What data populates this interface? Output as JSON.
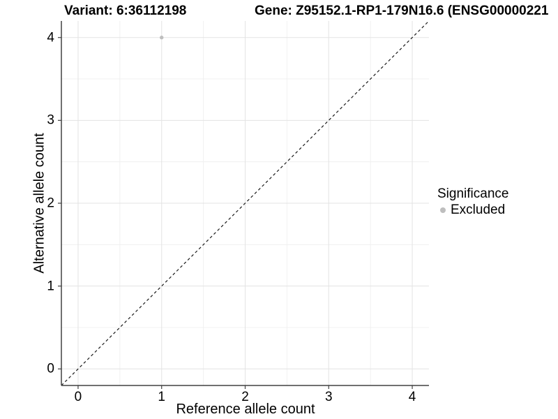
{
  "header": {
    "variant_title": "Variant: 6:36112198",
    "gene_title": "Gene: Z95152.1-RP1-179N16.6 (ENSG00000221"
  },
  "chart_data": {
    "type": "scatter",
    "xlabel": "Reference allele count",
    "ylabel": "Alternative allele count",
    "xlim": [
      -0.2,
      4.2
    ],
    "ylim": [
      -0.2,
      4.2
    ],
    "x_ticks": [
      0,
      1,
      2,
      3,
      4
    ],
    "y_ticks": [
      0,
      1,
      2,
      3,
      4
    ],
    "x_minor_ticks": [
      0.5,
      1.5,
      2.5,
      3.5
    ],
    "y_minor_ticks": [
      0.5,
      1.5,
      2.5,
      3.5
    ],
    "grid": "major+minor",
    "identity_line": {
      "slope": 1,
      "intercept": 0,
      "style": "dashed",
      "color": "#1a1a1a"
    },
    "series": [
      {
        "name": "Excluded",
        "color": "#bebebe",
        "marker": "circle",
        "points": [
          {
            "x": 1,
            "y": 4
          }
        ]
      }
    ]
  },
  "legend": {
    "title": "Significance",
    "position": "right",
    "items": [
      {
        "label": "Excluded",
        "color": "#bebebe",
        "marker": "circle"
      }
    ]
  },
  "colors": {
    "background": "#ffffff",
    "grid_major": "#e3e3e3",
    "grid_minor": "#f0f0f0",
    "axis_line": "#404040",
    "tick_mark": "#404040",
    "text": "#000000",
    "point_excluded": "#bebebe"
  }
}
